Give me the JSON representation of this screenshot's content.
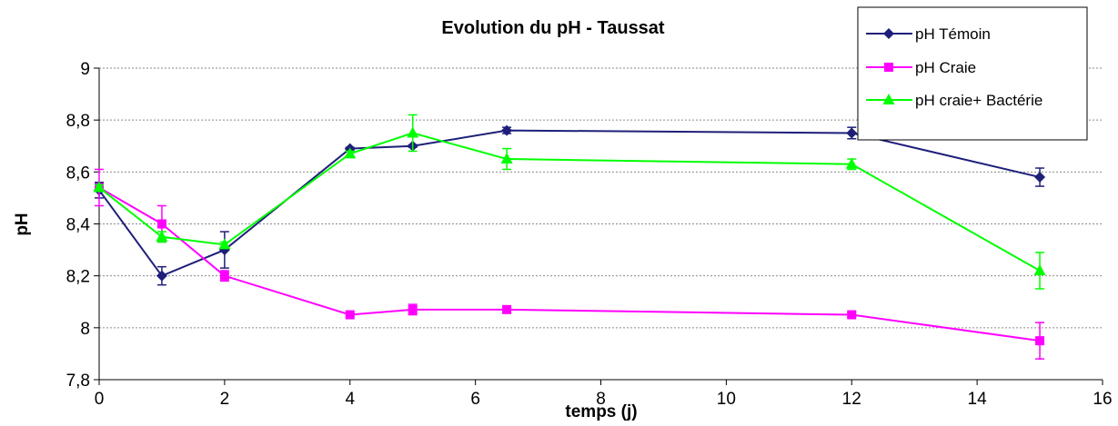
{
  "chart_data": {
    "type": "line",
    "title": "Evolution du pH - Taussat",
    "xlabel": "temps (j)",
    "ylabel": "pH",
    "xlim": [
      0,
      16
    ],
    "ylim": [
      7.8,
      9
    ],
    "xticks": [
      0,
      2,
      4,
      6,
      8,
      10,
      12,
      14,
      16
    ],
    "yticks": [
      7.8,
      8,
      8.2,
      8.4,
      8.6,
      8.8,
      9
    ],
    "xtick_labels": [
      "0",
      "2",
      "4",
      "6",
      "8",
      "10",
      "12",
      "14",
      "16"
    ],
    "ytick_labels": [
      "7,8",
      "8",
      "8,2",
      "8,4",
      "8,6",
      "8,8",
      "9"
    ],
    "grid": "horizontal",
    "legend_position": "top-right",
    "series": [
      {
        "name": "pH Témoin",
        "color": "#1f1f7a",
        "marker": "diamond",
        "x": [
          0,
          1,
          2,
          4,
          5,
          6.5,
          12,
          15
        ],
        "y": [
          8.53,
          8.2,
          8.3,
          8.69,
          8.7,
          8.76,
          8.75,
          8.58
        ],
        "err": [
          0.03,
          0.035,
          0.07,
          0.005,
          0.005,
          0.012,
          0.022,
          0.035
        ]
      },
      {
        "name": "pH Craie",
        "color": "#ff00ff",
        "marker": "square",
        "x": [
          0,
          1,
          2,
          4,
          5,
          6.5,
          12,
          15
        ],
        "y": [
          8.54,
          8.4,
          8.2,
          8.05,
          8.07,
          8.07,
          8.05,
          7.95
        ],
        "err": [
          0.07,
          0.07,
          0.02,
          0.005,
          0.02,
          0.01,
          0.008,
          0.07
        ]
      },
      {
        "name": "pH craie+ Bactérie",
        "color": "#00ff00",
        "marker": "triangle",
        "x": [
          0,
          1,
          2,
          4,
          5,
          6.5,
          12,
          15
        ],
        "y": [
          8.54,
          8.35,
          8.32,
          8.67,
          8.75,
          8.65,
          8.63,
          8.22
        ],
        "err": [
          0.01,
          0.02,
          0.01,
          0.01,
          0.07,
          0.04,
          0.02,
          0.07
        ]
      }
    ]
  }
}
